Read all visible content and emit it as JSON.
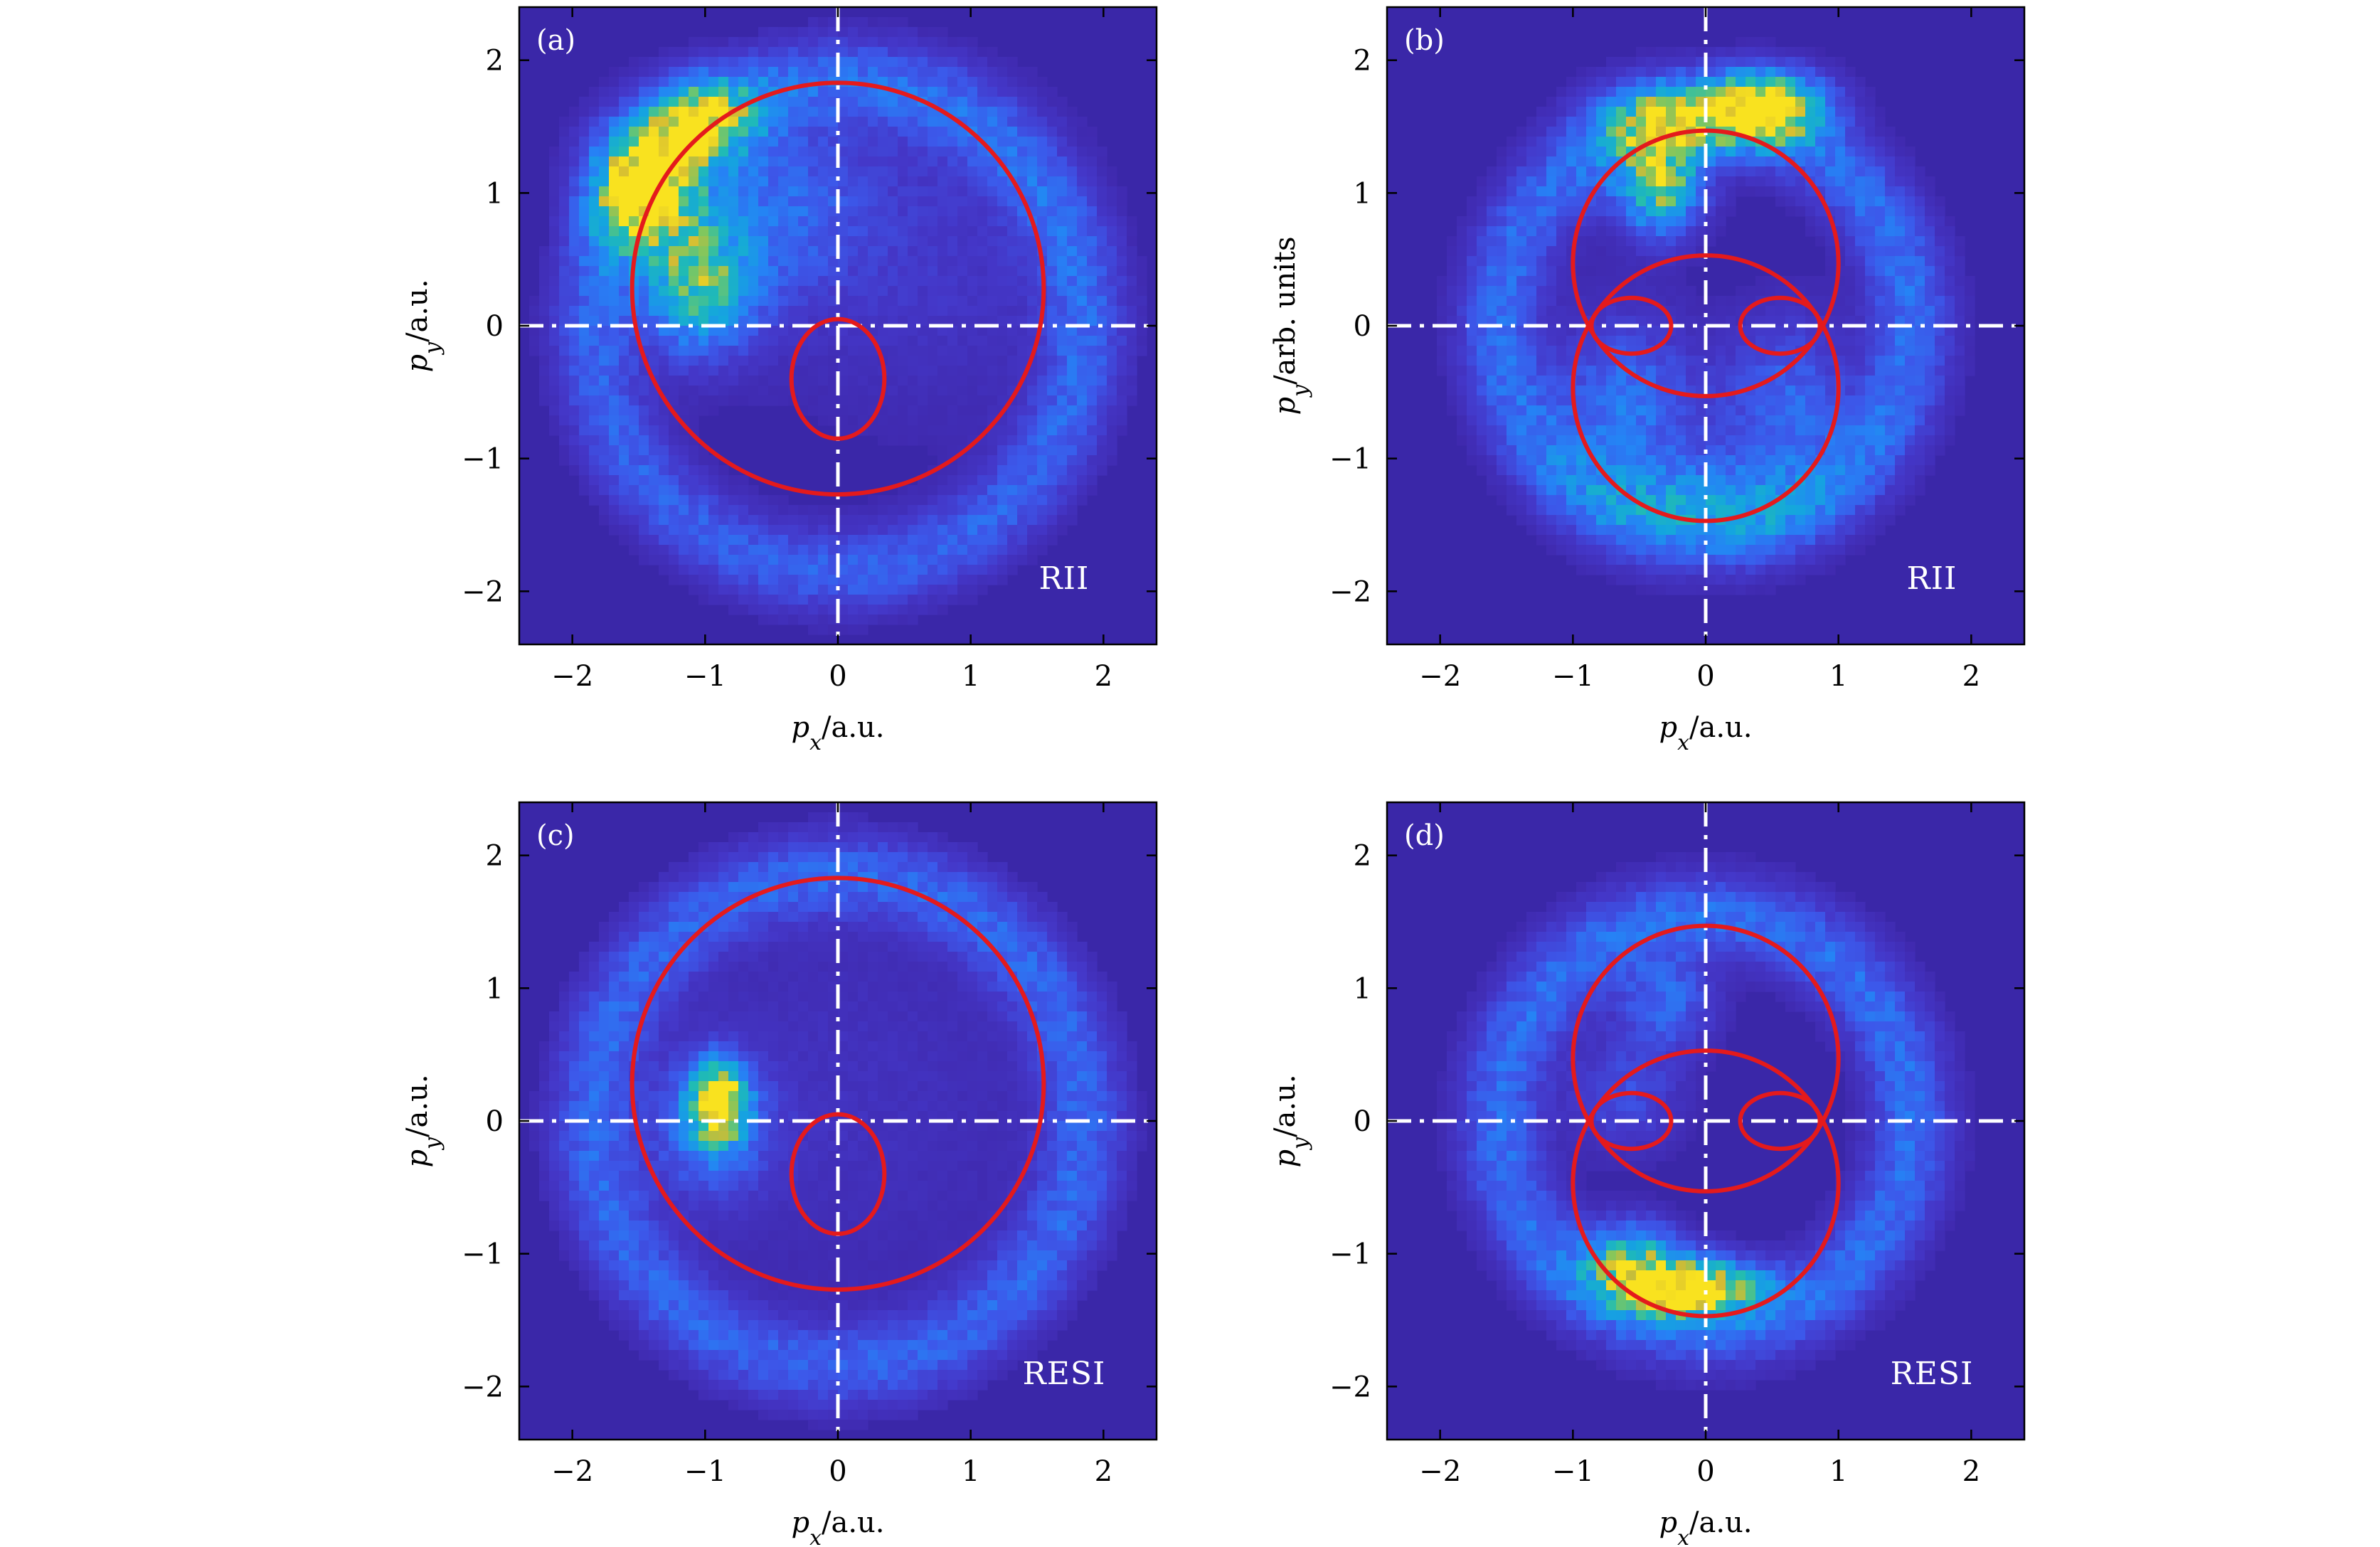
{
  "chart_data": [
    {
      "type": "heatmap",
      "panel_tag": "(a)",
      "mode_label": "RII",
      "xlabel": "p_x/a.u.",
      "ylabel": "p_y/a.u.",
      "xlim": [
        -2.4,
        2.4
      ],
      "ylim": [
        -2.4,
        2.4
      ],
      "xticks": [
        "−2",
        "−1",
        "0",
        "1",
        "2"
      ],
      "yticks": [
        "2",
        "1",
        "0",
        "−1",
        "−2"
      ],
      "curve": "single_circle_loop",
      "distribution": [
        {
          "cx": -1.45,
          "cy": 1.05,
          "sx": 0.28,
          "sy": 0.32,
          "w": 1.0
        },
        {
          "cx": -1.0,
          "cy": 1.55,
          "sx": 0.28,
          "sy": 0.22,
          "w": 0.7
        },
        {
          "cx": -1.05,
          "cy": 0.3,
          "sx": 0.3,
          "sy": 0.35,
          "w": 0.7
        },
        {
          "cx": -0.45,
          "cy": 0.9,
          "sx": 0.45,
          "sy": 0.45,
          "w": 0.25
        },
        {
          "cx": 0.6,
          "cy": 0.6,
          "sx": 0.9,
          "sy": 0.9,
          "w": 0.12
        }
      ]
    },
    {
      "type": "heatmap",
      "panel_tag": "(b)",
      "mode_label": "RII",
      "xlabel": "p_x/a.u.",
      "ylabel": "p_y/arb. units",
      "xlim": [
        -2.4,
        2.4
      ],
      "ylim": [
        -2.4,
        2.4
      ],
      "xticks": [
        "−2",
        "−1",
        "0",
        "1",
        "2"
      ],
      "yticks": [
        "2",
        "1",
        "0",
        "−1",
        "−2"
      ],
      "curve": "double_circle_loops",
      "distribution": [
        {
          "cx": 0.45,
          "cy": 1.65,
          "sx": 0.3,
          "sy": 0.18,
          "w": 1.0
        },
        {
          "cx": -0.3,
          "cy": 1.55,
          "sx": 0.35,
          "sy": 0.2,
          "w": 0.6
        },
        {
          "cx": -0.35,
          "cy": 1.05,
          "sx": 0.22,
          "sy": 0.25,
          "w": 0.75
        },
        {
          "cx": -0.6,
          "cy": -0.6,
          "sx": 0.35,
          "sy": 0.45,
          "w": 0.35
        },
        {
          "cx": 0.6,
          "cy": -0.6,
          "sx": 0.35,
          "sy": 0.45,
          "w": 0.3
        },
        {
          "cx": 0.0,
          "cy": -1.3,
          "sx": 0.5,
          "sy": 0.25,
          "w": 0.3
        }
      ]
    },
    {
      "type": "heatmap",
      "panel_tag": "(c)",
      "mode_label": "RESI",
      "xlabel": "p_x/a.u.",
      "ylabel": "p_y/a.u.",
      "xlim": [
        -2.4,
        2.4
      ],
      "ylim": [
        -2.4,
        2.4
      ],
      "xticks": [
        "−2",
        "−1",
        "0",
        "1",
        "2"
      ],
      "yticks": [
        "2",
        "1",
        "0",
        "−1",
        "−2"
      ],
      "curve": "single_circle_loop",
      "distribution": [
        {
          "cx": -0.9,
          "cy": 0.15,
          "sx": 0.14,
          "sy": 0.2,
          "w": 1.0
        },
        {
          "cx": -0.95,
          "cy": -0.05,
          "sx": 0.3,
          "sy": 0.35,
          "w": 0.35
        },
        {
          "cx": 0.1,
          "cy": 0.2,
          "sx": 1.1,
          "sy": 1.1,
          "w": 0.08
        }
      ]
    },
    {
      "type": "heatmap",
      "panel_tag": "(d)",
      "mode_label": "RESI",
      "xlabel": "p_x/a.u.",
      "ylabel": "p_y/a.u.",
      "xlim": [
        -2.4,
        2.4
      ],
      "ylim": [
        -2.4,
        2.4
      ],
      "xticks": [
        "−2",
        "−1",
        "0",
        "1",
        "2"
      ],
      "yticks": [
        "2",
        "1",
        "0",
        "−1",
        "−2"
      ],
      "curve": "double_circle_loops",
      "distribution": [
        {
          "cx": -0.1,
          "cy": -1.25,
          "sx": 0.35,
          "sy": 0.15,
          "w": 1.0
        },
        {
          "cx": -0.55,
          "cy": -1.05,
          "sx": 0.25,
          "sy": 0.2,
          "w": 0.6
        },
        {
          "cx": -0.3,
          "cy": 0.9,
          "sx": 0.25,
          "sy": 0.25,
          "w": 0.3
        },
        {
          "cx": -0.6,
          "cy": 0.2,
          "sx": 0.3,
          "sy": 0.3,
          "w": 0.2
        }
      ]
    }
  ],
  "ring_intensity": {
    "single_circle_loop": {
      "r": 1.85,
      "width": 0.22,
      "w": 0.28
    },
    "double_circle_loops": {
      "r": 1.55,
      "width": 0.22,
      "w": 0.32
    }
  },
  "colors": {
    "background": "#3a27a8",
    "curve": "#e41a1c",
    "guide": "#ffffff"
  },
  "colormap": [
    [
      0.0,
      "#3e26a8"
    ],
    [
      0.12,
      "#4437c8"
    ],
    [
      0.25,
      "#3c58ea"
    ],
    [
      0.4,
      "#2583f5"
    ],
    [
      0.55,
      "#14a6de"
    ],
    [
      0.68,
      "#21bcb2"
    ],
    [
      0.8,
      "#7fc75f"
    ],
    [
      0.9,
      "#d3bb34"
    ],
    [
      1.0,
      "#f9e21f"
    ]
  ]
}
